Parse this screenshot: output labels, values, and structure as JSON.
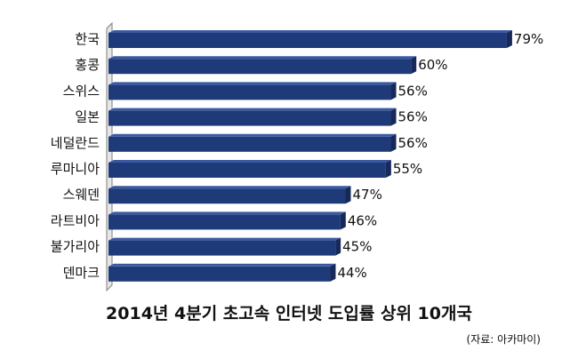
{
  "chart_data": {
    "type": "bar",
    "orientation": "horizontal",
    "title": "2014년 4분기 초고속 인터넷 도입률 상위 10개국",
    "source": "(자료: 아카마이)",
    "categories": [
      "한국",
      "홍콩",
      "스위스",
      "일본",
      "네덜란드",
      "루마니아",
      "스웨덴",
      "라트비아",
      "불가리아",
      "덴마크"
    ],
    "values": [
      79,
      60,
      56,
      56,
      56,
      55,
      47,
      46,
      45,
      44
    ],
    "value_labels": [
      "79%",
      "60%",
      "56%",
      "56%",
      "56%",
      "55%",
      "47%",
      "46%",
      "45%",
      "44%"
    ],
    "unit": "%",
    "xlim": [
      0,
      100
    ],
    "grid": false,
    "legend": "none",
    "bar_color": "#1f3a78",
    "bar_color_light": "#3a5aa0",
    "axis_color": "#7f7f7f"
  }
}
